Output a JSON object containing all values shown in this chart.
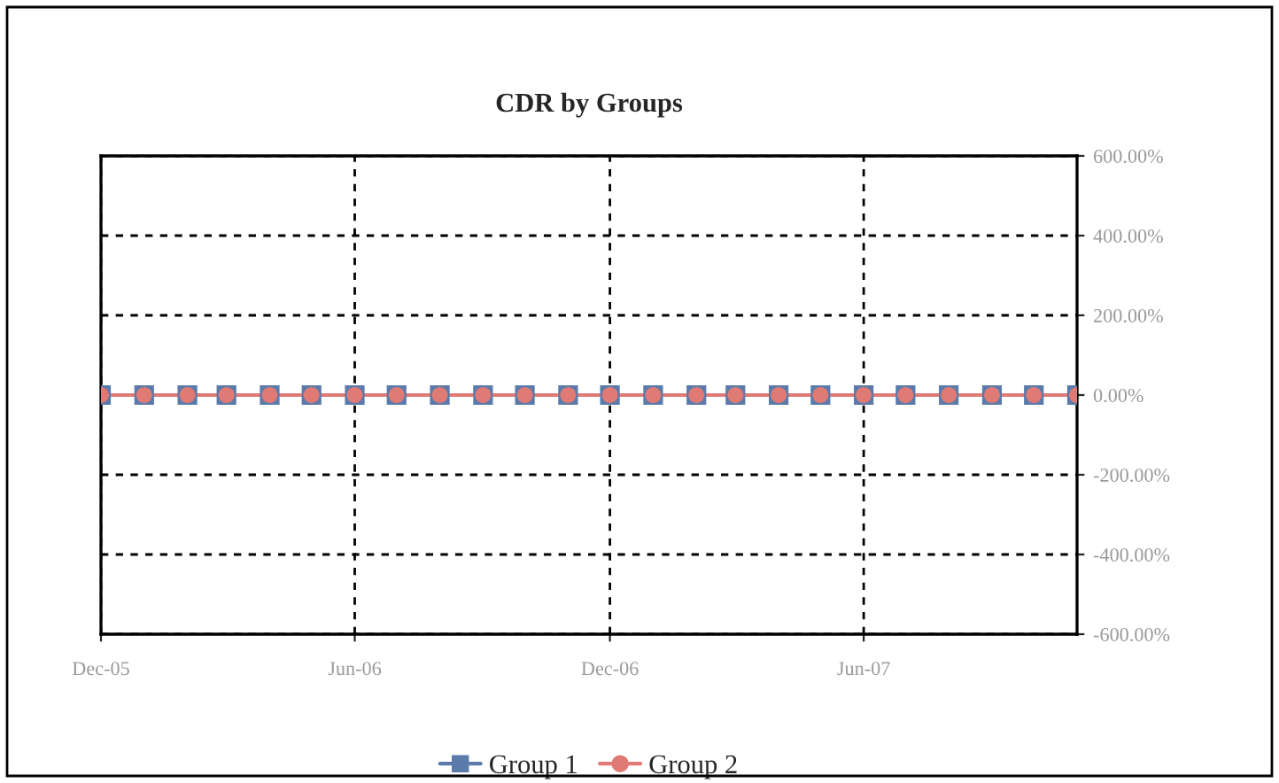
{
  "chart_data": {
    "type": "line",
    "title": "CDR by Groups",
    "x": [
      "2005-12",
      "2006-01",
      "2006-02",
      "2006-03",
      "2006-04",
      "2006-05",
      "2006-06",
      "2006-07",
      "2006-08",
      "2006-09",
      "2006-10",
      "2006-11",
      "2006-12",
      "2007-01",
      "2007-02",
      "2007-03",
      "2007-04",
      "2007-05",
      "2007-06",
      "2007-07",
      "2007-08",
      "2007-09",
      "2007-10",
      "2007-11"
    ],
    "series": [
      {
        "name": "Group 1",
        "color": "#5b7bab",
        "marker": "square",
        "values": [
          0,
          0,
          0,
          0,
          0,
          0,
          0,
          0,
          0,
          0,
          0,
          0,
          0,
          0,
          0,
          0,
          0,
          0,
          0,
          0,
          0,
          0,
          0,
          0
        ]
      },
      {
        "name": "Group 2",
        "color": "#e07a74",
        "marker": "circle",
        "values": [
          0,
          0,
          0,
          0,
          0,
          0,
          0,
          0,
          0,
          0,
          0,
          0,
          0,
          0,
          0,
          0,
          0,
          0,
          0,
          0,
          0,
          0,
          0,
          0
        ]
      }
    ],
    "xlim": [
      "2005-12",
      "2007-11"
    ],
    "xticks": [
      {
        "value": "2005-12",
        "label": "Dec-05"
      },
      {
        "value": "2006-06",
        "label": "Jun-06"
      },
      {
        "value": "2006-12",
        "label": "Dec-06"
      },
      {
        "value": "2007-06",
        "label": "Jun-07"
      }
    ],
    "ylim": [
      -600,
      600
    ],
    "yticks": [
      {
        "value": -600,
        "label": "-600.00%"
      },
      {
        "value": -400,
        "label": "-400.00%"
      },
      {
        "value": -200,
        "label": "-200.00%"
      },
      {
        "value": 0,
        "label": "0.00%"
      },
      {
        "value": 200,
        "label": "200.00%"
      },
      {
        "value": 400,
        "label": "400.00%"
      },
      {
        "value": 600,
        "label": "600.00%"
      }
    ],
    "grid": true,
    "legend": "bottom",
    "line_style": "solid"
  }
}
